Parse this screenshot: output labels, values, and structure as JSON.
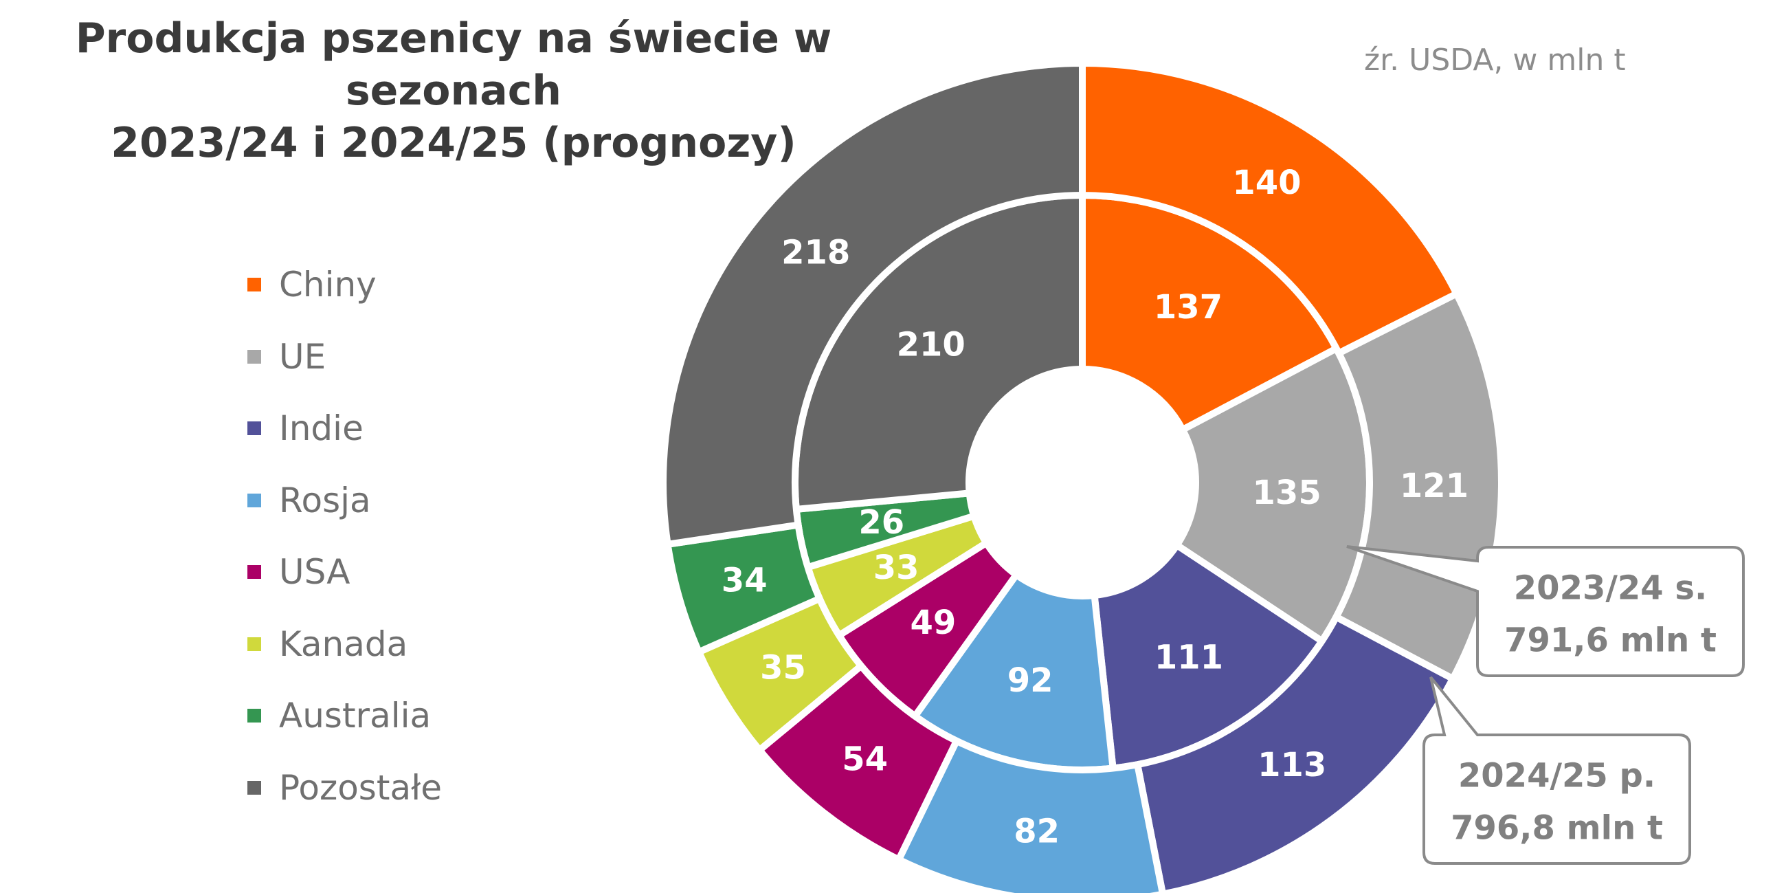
{
  "title_line1": "Produkcja pszenicy na świecie w sezonach",
  "title_line2": "2023/24 i 2024/25 (prognozy)",
  "source_note": "źr. USDA, w mln t",
  "colors": {
    "Chiny": "#ff6200",
    "UE": "#a8a8a8",
    "Indie": "#525199",
    "Rosja": "#60a6da",
    "USA": "#ab0066",
    "Kanada": "#d0d93c",
    "Australia": "#349651",
    "Pozostałe": "#666666"
  },
  "callouts": {
    "inner": {
      "line1": "2023/24 s.",
      "line2": "791,6 mln t"
    },
    "outer": {
      "line1": "2024/25 p.",
      "line2": "796,8 mln t"
    }
  },
  "chart_data": {
    "type": "pie",
    "subtype": "double-donut",
    "title": "Produkcja pszenicy na świecie w sezonach 2023/24 i 2024/25 (prognozy)",
    "unit": "mln t",
    "categories": [
      "Chiny",
      "UE",
      "Indie",
      "Rosja",
      "USA",
      "Kanada",
      "Australia",
      "Pozostałe"
    ],
    "series": [
      {
        "name": "2023/24 s.",
        "ring": "inner",
        "values": [
          137,
          135,
          111,
          92,
          49,
          33,
          26,
          210
        ]
      },
      {
        "name": "2024/25 p.",
        "ring": "outer",
        "values": [
          140,
          121,
          113,
          82,
          54,
          35,
          34,
          218
        ]
      }
    ],
    "legend_position": "left"
  }
}
